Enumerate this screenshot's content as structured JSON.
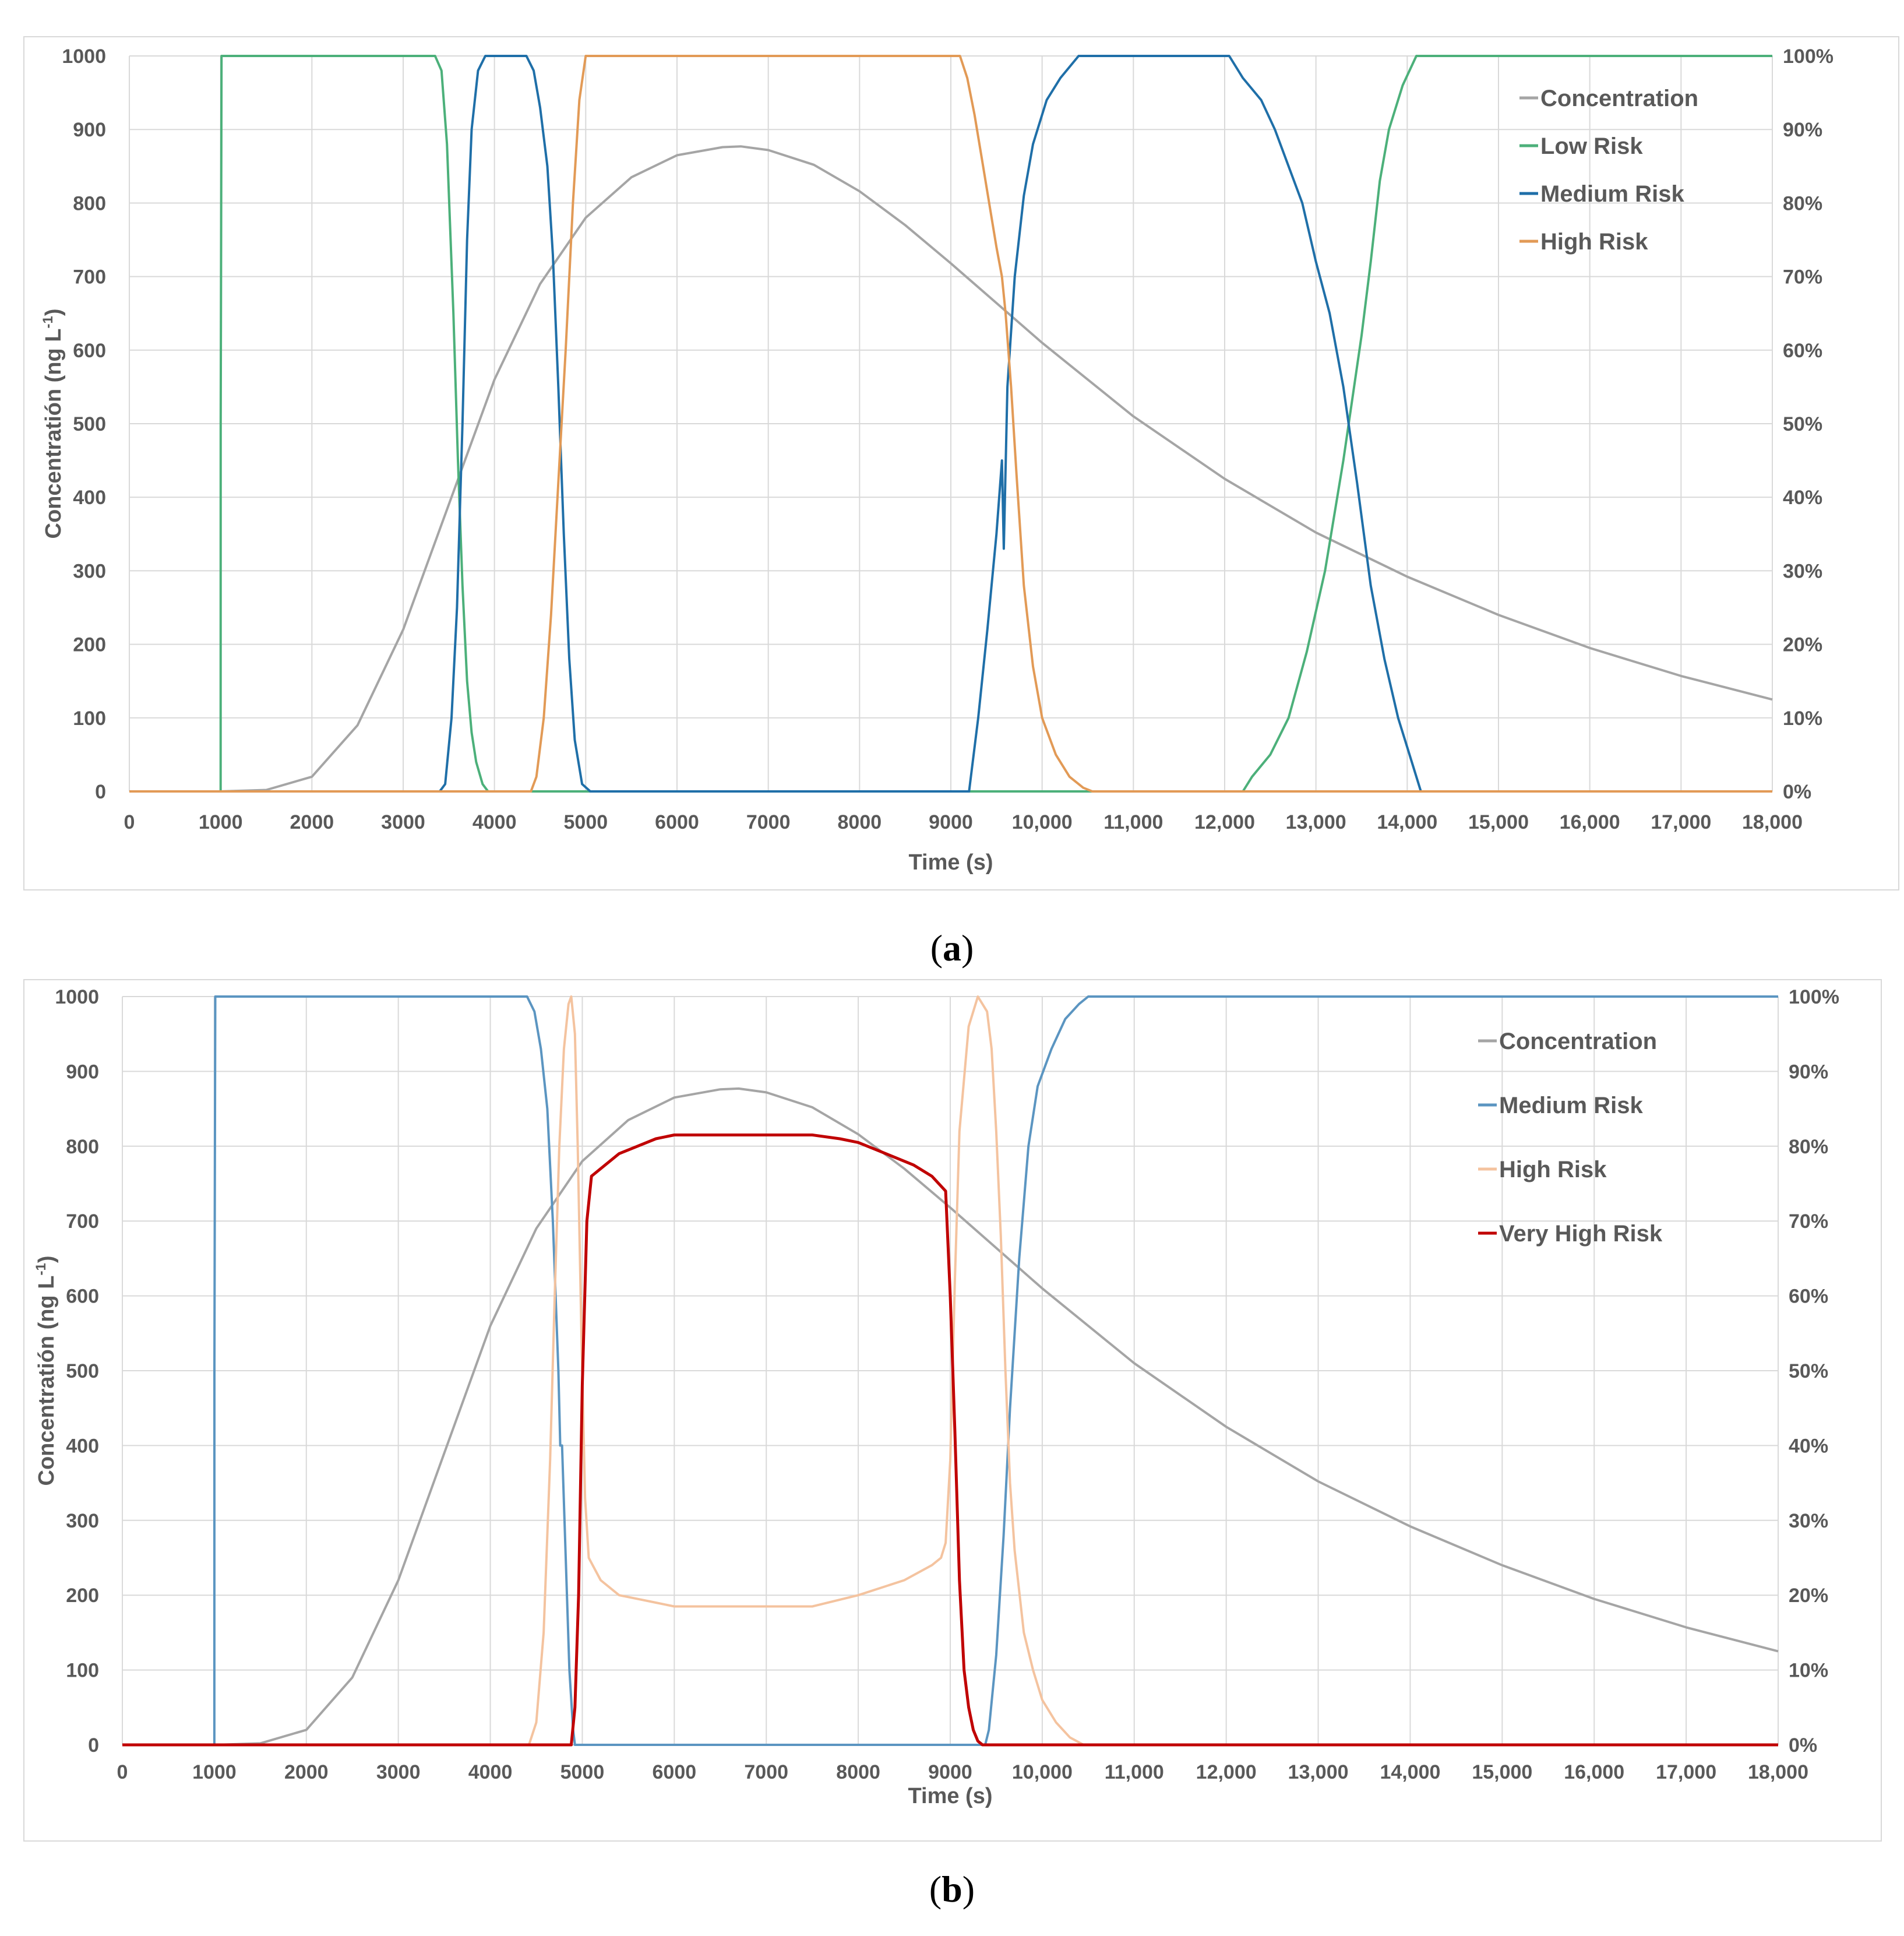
{
  "captions": {
    "a": {
      "open": "(",
      "letter": "a",
      "close": ")"
    },
    "b": {
      "open": "(",
      "letter": "b",
      "close": ")"
    }
  },
  "chart_data": [
    {
      "id": "a",
      "type": "line",
      "xlabel": "Time (s)",
      "ylabel": "Concentratión (ng L",
      "ylabel_sup": "-1",
      "ylabel_end": ")",
      "xlim": [
        0,
        18000
      ],
      "ylim": [
        0,
        1000
      ],
      "y2lim": [
        0,
        100
      ],
      "x_ticks": [
        0,
        1000,
        2000,
        3000,
        4000,
        5000,
        6000,
        7000,
        8000,
        9000,
        10000,
        11000,
        12000,
        13000,
        14000,
        15000,
        16000,
        17000,
        18000
      ],
      "x_tick_labels": [
        "0",
        "1000",
        "2000",
        "3000",
        "4000",
        "5000",
        "6000",
        "7000",
        "8000",
        "9000",
        "10,000",
        "11,000",
        "12,000",
        "13,000",
        "14,000",
        "15,000",
        "16,000",
        "17,000",
        "18,000"
      ],
      "y_ticks": [
        0,
        100,
        200,
        300,
        400,
        500,
        600,
        700,
        800,
        900,
        1000
      ],
      "y_tick_labels": [
        "0",
        "100",
        "200",
        "300",
        "400",
        "500",
        "600",
        "700",
        "800",
        "900",
        "1000"
      ],
      "y2_ticks": [
        0,
        10,
        20,
        30,
        40,
        50,
        60,
        70,
        80,
        90,
        100
      ],
      "y2_tick_labels": [
        "0%",
        "10%",
        "20%",
        "30%",
        "40%",
        "50%",
        "60%",
        "70%",
        "80%",
        "90%",
        "100%"
      ],
      "legend_position": "top-right",
      "series": [
        {
          "name": "Concentration",
          "axis": "left",
          "color": "#a5a5a5",
          "x": [
            0,
            1000,
            1500,
            2000,
            2500,
            3000,
            3500,
            4000,
            4500,
            5000,
            5500,
            6000,
            6500,
            6700,
            7000,
            7500,
            8000,
            8500,
            9000,
            9500,
            10000,
            11000,
            12000,
            13000,
            14000,
            15000,
            16000,
            17000,
            18000
          ],
          "values": [
            0,
            0,
            2,
            20,
            90,
            220,
            390,
            560,
            690,
            780,
            835,
            865,
            876,
            877,
            872,
            852,
            816,
            770,
            718,
            664,
            610,
            510,
            425,
            352,
            292,
            240,
            195,
            157,
            125
          ]
        },
        {
          "name": "Low Risk",
          "axis": "right",
          "color": "#4cb07a",
          "x": [
            0,
            1000,
            1001,
            1010,
            3350,
            3420,
            3480,
            3550,
            3600,
            3650,
            3700,
            3750,
            3800,
            3870,
            3930,
            12200,
            12300,
            12500,
            12700,
            12900,
            13100,
            13300,
            13500,
            13600,
            13700,
            13800,
            13950,
            14100,
            18000
          ],
          "values": [
            0,
            0,
            50,
            100,
            100,
            98,
            88,
            65,
            45,
            28,
            15,
            8,
            4,
            1,
            0,
            0,
            2,
            5,
            10,
            19,
            30,
            45,
            62,
            72,
            83,
            90,
            96,
            100,
            100
          ]
        },
        {
          "name": "Medium Risk",
          "axis": "right",
          "color": "#1f6fa8",
          "x": [
            0,
            3400,
            3460,
            3530,
            3590,
            3650,
            3700,
            3750,
            3820,
            3900,
            3950,
            4350,
            4430,
            4500,
            4580,
            4640,
            4700,
            4760,
            4820,
            4880,
            4960,
            5050,
            9200,
            9230,
            9300,
            9400,
            9500,
            9560,
            9580,
            9620,
            9700,
            9800,
            9900,
            10050,
            10200,
            10400,
            10500,
            12050,
            12200,
            12400,
            12550,
            12700,
            12850,
            13000,
            13150,
            13300,
            13450,
            13600,
            13750,
            13900,
            14050,
            14150,
            18000
          ],
          "values": [
            0,
            0,
            1,
            10,
            25,
            50,
            75,
            90,
            98,
            100,
            100,
            100,
            98,
            93,
            85,
            73,
            55,
            35,
            18,
            7,
            1,
            0,
            0,
            3,
            10,
            22,
            35,
            45,
            33,
            55,
            70,
            81,
            88,
            94,
            97,
            100,
            100,
            100,
            97,
            94,
            90,
            85,
            80,
            72,
            65,
            55,
            42,
            28,
            18,
            10,
            4,
            0,
            0
          ]
        },
        {
          "name": "High Risk",
          "axis": "right",
          "color": "#e29a56",
          "x": [
            0,
            4400,
            4460,
            4540,
            4620,
            4700,
            4780,
            4860,
            4930,
            5000,
            9100,
            9180,
            9260,
            9340,
            9420,
            9500,
            9560,
            9600,
            9660,
            9720,
            9800,
            9900,
            10000,
            10150,
            10300,
            10450,
            10550,
            18000
          ],
          "values": [
            0,
            0,
            2,
            10,
            24,
            42,
            60,
            80,
            94,
            100,
            100,
            97,
            92,
            86,
            80,
            74,
            70,
            65,
            55,
            43,
            28,
            17,
            10,
            5,
            2,
            0.5,
            0,
            0
          ]
        }
      ]
    },
    {
      "id": "b",
      "type": "line",
      "xlabel": "Time (s)",
      "ylabel": "Concentratión (ng L",
      "ylabel_sup": "-1",
      "ylabel_end": ")",
      "xlim": [
        0,
        18000
      ],
      "ylim": [
        0,
        1000
      ],
      "y2lim": [
        0,
        100
      ],
      "x_ticks": [
        0,
        1000,
        2000,
        3000,
        4000,
        5000,
        6000,
        7000,
        8000,
        9000,
        10000,
        11000,
        12000,
        13000,
        14000,
        15000,
        16000,
        17000,
        18000
      ],
      "x_tick_labels": [
        "0",
        "1000",
        "2000",
        "3000",
        "4000",
        "5000",
        "6000",
        "7000",
        "8000",
        "9000",
        "10,000",
        "11,000",
        "12,000",
        "13,000",
        "14,000",
        "15,000",
        "16,000",
        "17,000",
        "18,000"
      ],
      "y_ticks": [
        0,
        100,
        200,
        300,
        400,
        500,
        600,
        700,
        800,
        900,
        1000
      ],
      "y_tick_labels": [
        "0",
        "100",
        "200",
        "300",
        "400",
        "500",
        "600",
        "700",
        "800",
        "900",
        "1000"
      ],
      "y2_ticks": [
        0,
        10,
        20,
        30,
        40,
        50,
        60,
        70,
        80,
        90,
        100
      ],
      "y2_tick_labels": [
        "0%",
        "10%",
        "20%",
        "30%",
        "40%",
        "50%",
        "60%",
        "70%",
        "80%",
        "90%",
        "100%"
      ],
      "legend_position": "top-right",
      "series": [
        {
          "name": "Concentration",
          "axis": "left",
          "color": "#a5a5a5",
          "x": [
            0,
            1000,
            1500,
            2000,
            2500,
            3000,
            3500,
            4000,
            4500,
            5000,
            5500,
            6000,
            6500,
            6700,
            7000,
            7500,
            8000,
            8500,
            9000,
            9500,
            10000,
            11000,
            12000,
            13000,
            14000,
            15000,
            16000,
            17000,
            18000
          ],
          "values": [
            0,
            0,
            2,
            20,
            90,
            220,
            390,
            560,
            690,
            780,
            835,
            865,
            876,
            877,
            872,
            852,
            816,
            770,
            718,
            664,
            610,
            510,
            425,
            352,
            292,
            240,
            195,
            157,
            125
          ]
        },
        {
          "name": "Medium Risk",
          "axis": "right",
          "color": "#5b95c1",
          "x": [
            0,
            1000,
            1001,
            1010,
            4400,
            4480,
            4550,
            4620,
            4680,
            4740,
            4760,
            4780,
            4820,
            4860,
            4900,
            4920,
            9380,
            9420,
            9500,
            9580,
            9650,
            9750,
            9850,
            9950,
            10100,
            10250,
            10400,
            10500,
            18000
          ],
          "values": [
            0,
            0,
            50,
            100,
            100,
            98,
            93,
            85,
            70,
            50,
            40,
            40,
            25,
            10,
            2,
            0,
            0,
            2,
            12,
            28,
            45,
            65,
            80,
            88,
            93,
            97,
            99,
            100,
            100
          ]
        },
        {
          "name": "High Risk",
          "axis": "right",
          "color": "#f4c39f",
          "x": [
            0,
            4420,
            4500,
            4580,
            4650,
            4700,
            4750,
            4800,
            4850,
            4880,
            4920,
            4950,
            4990,
            5030,
            5070,
            5200,
            5400,
            5600,
            5800,
            6000,
            7500,
            8000,
            8500,
            8800,
            8900,
            8950,
            9000,
            9050,
            9100,
            9200,
            9300,
            9400,
            9450,
            9500,
            9550,
            9600,
            9650,
            9700,
            9800,
            9900,
            10000,
            10150,
            10300,
            10450,
            10550,
            18000
          ],
          "values": [
            0,
            0,
            3,
            15,
            38,
            60,
            80,
            93,
            99,
            100,
            95,
            80,
            55,
            33,
            25,
            22,
            20,
            19.5,
            19,
            18.5,
            18.5,
            20,
            22,
            24,
            25,
            27,
            38,
            62,
            82,
            96,
            100,
            98,
            93,
            82,
            68,
            50,
            35,
            26,
            15,
            10,
            6,
            3,
            1,
            0,
            0,
            0
          ]
        },
        {
          "name": "Very High Risk",
          "axis": "right",
          "color": "#c00000",
          "x": [
            0,
            4880,
            4920,
            4960,
            5000,
            5050,
            5100,
            5200,
            5400,
            5600,
            5800,
            6000,
            7500,
            7800,
            8000,
            8200,
            8400,
            8600,
            8800,
            8950,
            9000,
            9050,
            9100,
            9150,
            9200,
            9250,
            9300,
            9350,
            9400,
            9450,
            18000
          ],
          "values": [
            0,
            0,
            5,
            20,
            48,
            70,
            76,
            77,
            79,
            80,
            81,
            81.5,
            81.5,
            81,
            80.5,
            79.5,
            78.5,
            77.5,
            76,
            74,
            60,
            42,
            22,
            10,
            5,
            2,
            0.5,
            0,
            0,
            0,
            0
          ]
        }
      ]
    }
  ]
}
